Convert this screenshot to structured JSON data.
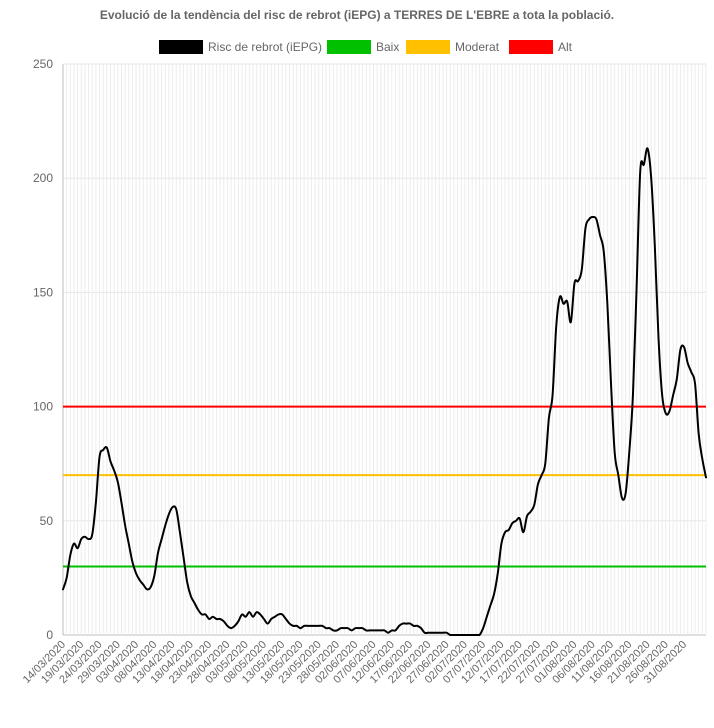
{
  "chart_data": {
    "type": "line",
    "title": "Evolució de la tendència del risc de rebrot (iEPG) a TERRES DE L'EBRE a tota la població.",
    "ylim": [
      0,
      250
    ],
    "yticks": [
      0,
      50,
      100,
      150,
      200,
      250
    ],
    "grid": true,
    "legend_position": "top",
    "x_tick_labels": [
      "14/03/2020",
      "19/03/2020",
      "24/03/2020",
      "29/03/2020",
      "03/04/2020",
      "08/04/2020",
      "13/04/2020",
      "18/04/2020",
      "23/04/2020",
      "28/04/2020",
      "03/05/2020",
      "08/05/2020",
      "13/05/2020",
      "18/05/2020",
      "23/05/2020",
      "28/05/2020",
      "02/06/2020",
      "07/06/2020",
      "12/06/2020",
      "17/06/2020",
      "22/06/2020",
      "27/06/2020",
      "02/07/2020",
      "07/07/2020",
      "12/07/2020",
      "17/07/2020",
      "22/07/2020",
      "27/07/2020",
      "01/08/2020",
      "06/08/2020",
      "11/08/2020",
      "16/08/2020",
      "21/08/2020",
      "26/08/2020",
      "31/08/2020"
    ],
    "series": [
      {
        "name": "Risc de rebrot (iEPG)",
        "color": "#000000",
        "x_start": "14/03/2020",
        "values": [
          20,
          25,
          35,
          40,
          38,
          42,
          43,
          42,
          44,
          58,
          78,
          81,
          82,
          76,
          72,
          67,
          58,
          48,
          40,
          32,
          27,
          24,
          22,
          20,
          21,
          26,
          36,
          42,
          48,
          53,
          56,
          55,
          45,
          34,
          23,
          17,
          14,
          11,
          9,
          9,
          7,
          8,
          7,
          7,
          6,
          4,
          3,
          4,
          6,
          9,
          8,
          10,
          8,
          10,
          9,
          7,
          5,
          7,
          8,
          9,
          9,
          7,
          5,
          4,
          4,
          3,
          4,
          4,
          4,
          4,
          4,
          4,
          3,
          3,
          2,
          2,
          3,
          3,
          3,
          2,
          3,
          3,
          3,
          2,
          2,
          2,
          2,
          2,
          2,
          1,
          2,
          2,
          4,
          5,
          5,
          5,
          4,
          4,
          3,
          1,
          1,
          1,
          1,
          1,
          1,
          1,
          0,
          0,
          0,
          0,
          0,
          0,
          0,
          0,
          0,
          3,
          8,
          13,
          18,
          27,
          40,
          45,
          46,
          49,
          50,
          51,
          45,
          52,
          54,
          57,
          66,
          70,
          75,
          95,
          105,
          135,
          148,
          145,
          146,
          137,
          154,
          155,
          160,
          178,
          182,
          183,
          182,
          175,
          168,
          145,
          110,
          80,
          70,
          60,
          62,
          80,
          105,
          152,
          203,
          206,
          213,
          200,
          170,
          130,
          105,
          97,
          98,
          105,
          112,
          125,
          126,
          119,
          115,
          110,
          88,
          77,
          69
        ]
      },
      {
        "name": "Baix",
        "color": "#00c000",
        "y": 30
      },
      {
        "name": "Moderat",
        "color": "#ffc000",
        "y": 70
      },
      {
        "name": "Alt",
        "color": "#ff0000",
        "y": 100
      }
    ]
  }
}
